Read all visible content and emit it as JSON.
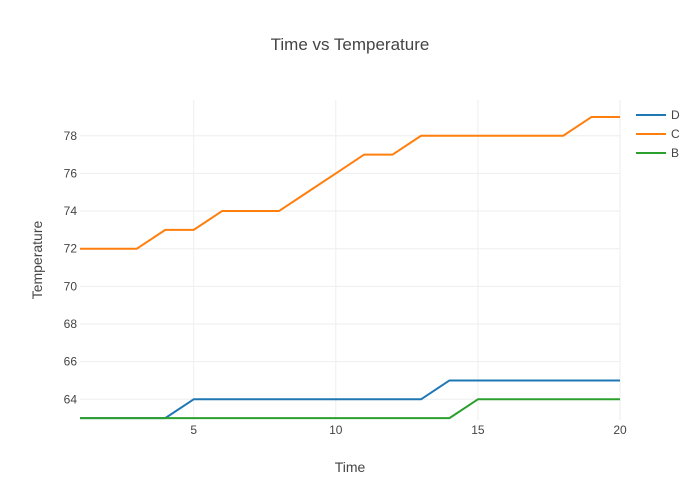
{
  "chart_data": {
    "type": "line",
    "title": "Time vs Temperature",
    "xlabel": "Time",
    "ylabel": "Temperature",
    "x": [
      1,
      2,
      3,
      4,
      5,
      6,
      7,
      8,
      9,
      10,
      11,
      12,
      13,
      14,
      15,
      16,
      17,
      18,
      19,
      20
    ],
    "xlim": [
      1,
      20
    ],
    "ylim": [
      62.9,
      79.9
    ],
    "x_ticks": [
      5,
      10,
      15,
      20
    ],
    "y_ticks": [
      64,
      66,
      68,
      70,
      72,
      74,
      76,
      78
    ],
    "grid": true,
    "legend_position": "top-right",
    "series": [
      {
        "name": "D",
        "color": "#1f77b4",
        "values": [
          63,
          63,
          63,
          63,
          64,
          64,
          64,
          64,
          64,
          64,
          64,
          64,
          64,
          65,
          65,
          65,
          65,
          65,
          65,
          65
        ]
      },
      {
        "name": "C",
        "color": "#ff7f0e",
        "values": [
          72,
          72,
          72,
          73,
          73,
          74,
          74,
          74,
          75,
          76,
          77,
          77,
          78,
          78,
          78,
          78,
          78,
          78,
          79,
          79
        ]
      },
      {
        "name": "B",
        "color": "#2ca02c",
        "values": [
          63,
          63,
          63,
          63,
          63,
          63,
          63,
          63,
          63,
          63,
          63,
          63,
          63,
          63,
          64,
          64,
          64,
          64,
          64,
          64
        ]
      }
    ]
  }
}
